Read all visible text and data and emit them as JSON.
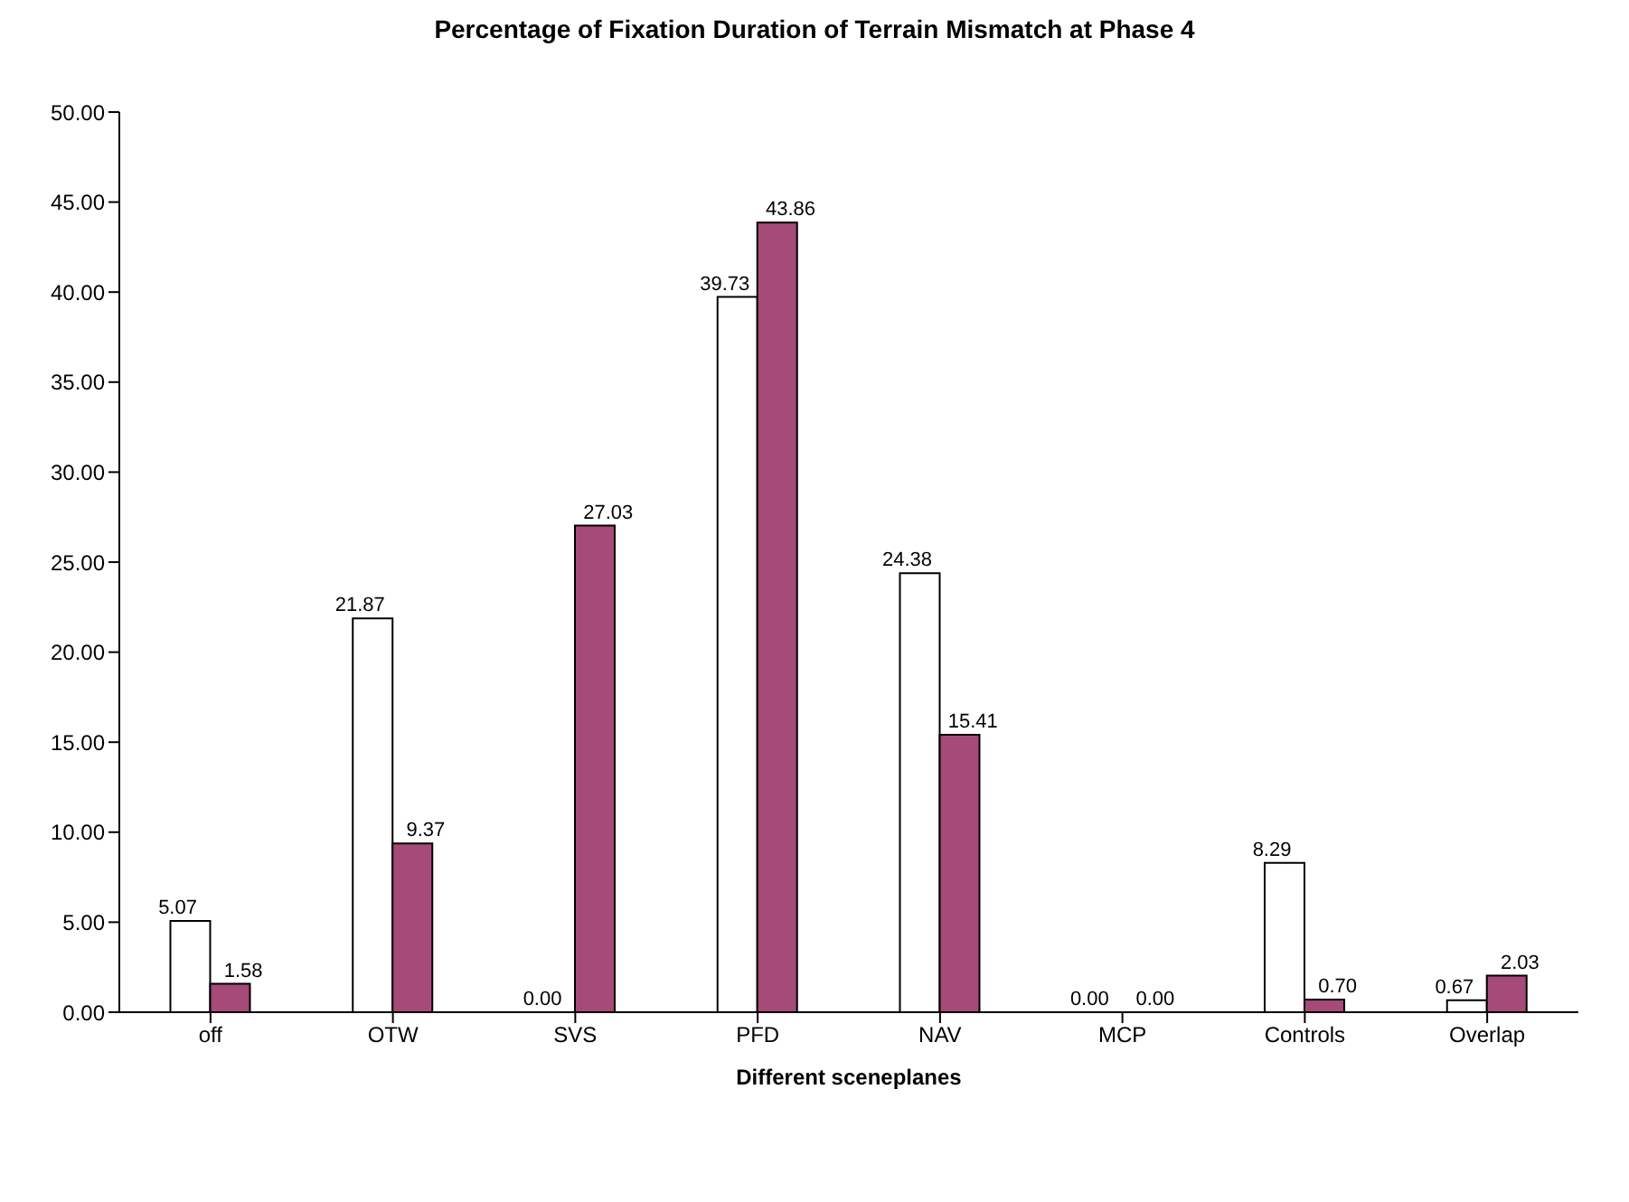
{
  "chart_data": {
    "type": "bar",
    "title": "Percentage of Fixation Duration of Terrain Mismatch at Phase 4",
    "xlabel": "Different sceneplanes",
    "categories": [
      "off",
      "OTW",
      "SVS",
      "PFD",
      "NAV",
      "MCP",
      "Controls",
      "Overlap"
    ],
    "series": [
      {
        "color": "#ffffff",
        "values": [
          5.07,
          21.87,
          0,
          39.73,
          24.38,
          0,
          8.29,
          0.67
        ],
        "value_labels": [
          "5.07",
          "21.87",
          "0.00",
          "39.73",
          "24.38",
          "0.00",
          "8.29",
          "0.67"
        ]
      },
      {
        "color": "#a64a77",
        "values": [
          1.58,
          9.37,
          27.03,
          43.86,
          15.41,
          0,
          0.7,
          2.03
        ],
        "value_labels": [
          "1.58",
          "9.37",
          "27.03",
          "43.86",
          "15.41",
          "0.00",
          "0.70",
          "2.03"
        ]
      }
    ],
    "ylim": [
      0,
      50
    ],
    "yticks": [
      {
        "value": 0,
        "label": "0.00"
      },
      {
        "value": 5,
        "label": "5.00"
      },
      {
        "value": 10,
        "label": "10.00"
      },
      {
        "value": 15,
        "label": "15.00"
      },
      {
        "value": 20,
        "label": "20.00"
      },
      {
        "value": 25,
        "label": "25.00"
      },
      {
        "value": 30,
        "label": "30.00"
      },
      {
        "value": 35,
        "label": "35.00"
      },
      {
        "value": 40,
        "label": "40.00"
      },
      {
        "value": 45,
        "label": "45.00"
      },
      {
        "value": 50,
        "label": "50.00"
      }
    ],
    "grid": false,
    "legend": false
  }
}
